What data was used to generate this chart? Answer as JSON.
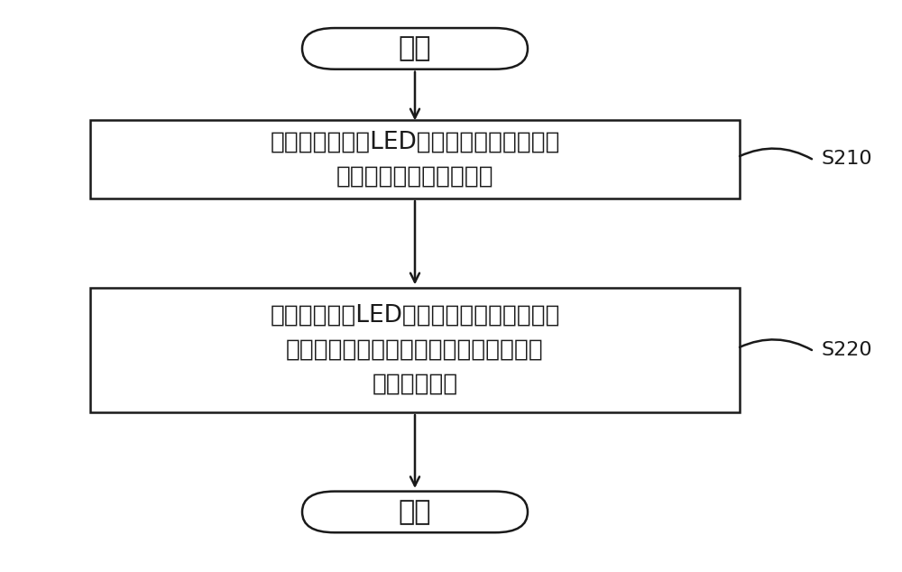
{
  "bg_color": "#ffffff",
  "box_color": "#ffffff",
  "border_color": "#1a1a1a",
  "text_color": "#1a1a1a",
  "arrow_color": "#1a1a1a",
  "start_text": "开始",
  "end_text": "结束",
  "step1_line1": "获取每种型号的LED的背光光谱值以及每种",
  "step1_line2": "型号的液晶玻璃的透过率",
  "step2_line1": "将每种型号的LED的背光光谱值和每种型号",
  "step2_line2": "的液晶玻璃的透过率相乘得到两者搭配的",
  "step2_line3": "白画面色坐标",
  "step1_label": "S210",
  "step2_label": "S220",
  "font_size_main": 19,
  "font_size_label": 16,
  "font_size_terminal": 22,
  "lw": 1.8
}
